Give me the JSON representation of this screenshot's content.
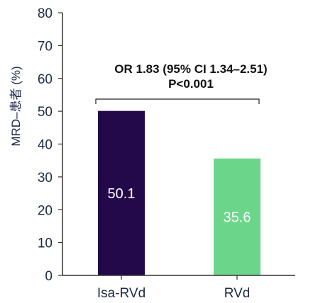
{
  "chart_data": {
    "type": "bar",
    "title": "",
    "xlabel": "",
    "ylabel": "MRD–患者 (%)",
    "ylim": [
      0,
      80
    ],
    "yticks": [
      0,
      10,
      20,
      30,
      40,
      50,
      60,
      70,
      80
    ],
    "categories": [
      "Isa-RVd",
      "RVd"
    ],
    "values": [
      50.1,
      35.6
    ],
    "data_labels": [
      "50.1",
      "35.6"
    ],
    "bar_colors": [
      "#24094a",
      "#6bd68a"
    ],
    "grid": false,
    "annotation": {
      "line1": "OR 1.83 (95% CI 1.34–2.51)",
      "line2": "P<0.001"
    }
  }
}
